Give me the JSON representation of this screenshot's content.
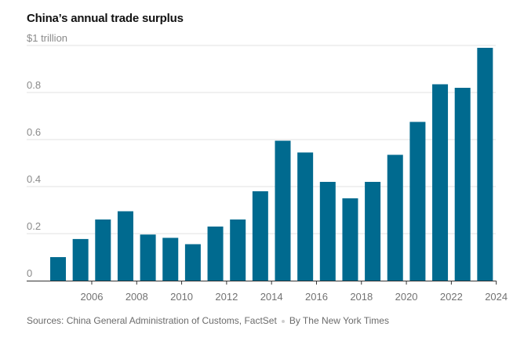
{
  "chart_data": {
    "type": "bar",
    "title": "China’s annual trade surplus",
    "ylabel": "$1 trillion",
    "xlabel": "",
    "ylim": [
      0,
      1.0
    ],
    "grid": true,
    "yticks": [
      {
        "value": 0,
        "label": "0"
      },
      {
        "value": 0.2,
        "label": "0.2"
      },
      {
        "value": 0.4,
        "label": "0.4"
      },
      {
        "value": 0.6,
        "label": "0.6"
      },
      {
        "value": 0.8,
        "label": "0.8"
      },
      {
        "value": 1.0,
        "label": "$1 trillion"
      }
    ],
    "xtick_labels": [
      "2006",
      "2008",
      "2010",
      "2012",
      "2014",
      "2016",
      "2018",
      "2020",
      "2022",
      "2024"
    ],
    "categories": [
      "2005",
      "2006",
      "2007",
      "2008",
      "2009",
      "2010",
      "2011",
      "2012",
      "2013",
      "2014",
      "2015",
      "2016",
      "2017",
      "2018",
      "2019",
      "2020",
      "2021",
      "2022",
      "2023",
      "2024"
    ],
    "values": [
      0.1,
      0.177,
      0.26,
      0.295,
      0.196,
      0.182,
      0.155,
      0.23,
      0.26,
      0.38,
      0.595,
      0.545,
      0.42,
      0.35,
      0.42,
      0.535,
      0.675,
      0.835,
      0.82,
      0.99
    ],
    "bar_color": "#006a8f"
  },
  "footer": {
    "sources": "Sources: China General Administration of Customs, FactSet",
    "credit": "By The New York Times"
  }
}
